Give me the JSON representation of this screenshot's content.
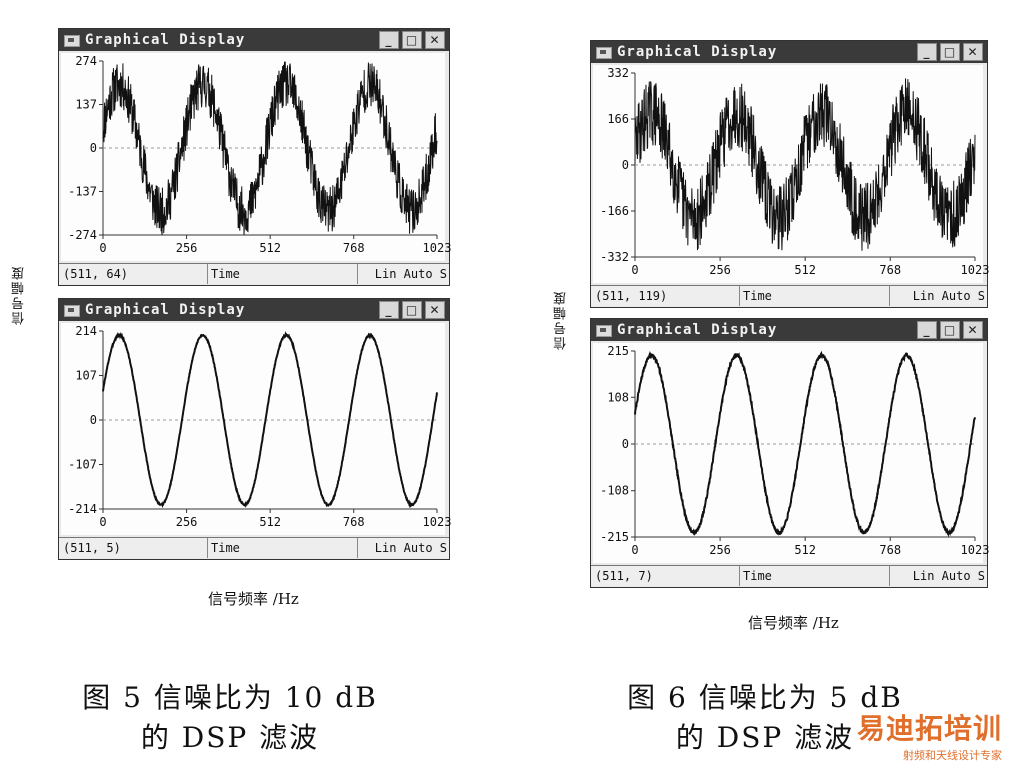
{
  "windows": [
    {
      "id": "w1",
      "title": "Graphical Display",
      "status_xy": "(511, 64)",
      "status_mode": "Time",
      "status_right": "Lin Auto S",
      "chart_data": {
        "type": "line",
        "title": "",
        "yticks": [
          "274",
          "137",
          "0",
          "-137",
          "-274"
        ],
        "xticks": [
          "0",
          "256",
          "512",
          "768",
          "1023"
        ],
        "ylim": [
          -274,
          274
        ],
        "xlim": [
          0,
          1023
        ],
        "cycles": 4,
        "amplitude": 200,
        "noise": 75,
        "y_zero_line": true,
        "seed": 11
      }
    },
    {
      "id": "w2",
      "title": "Graphical Display",
      "status_xy": "(511, 5)",
      "status_mode": "Time",
      "status_right": "Lin Auto S",
      "chart_data": {
        "type": "line",
        "title": "",
        "yticks": [
          "214",
          "107",
          "0",
          "-107",
          "-214"
        ],
        "xticks": [
          "0",
          "256",
          "512",
          "768",
          "1023"
        ],
        "ylim": [
          -214,
          214
        ],
        "xlim": [
          0,
          1023
        ],
        "cycles": 4,
        "amplitude": 204,
        "noise": 2,
        "y_zero_line": true,
        "seed": 3
      }
    },
    {
      "id": "w3",
      "title": "Graphical Display",
      "status_xy": "(511, 119)",
      "status_mode": "Time",
      "status_right": "Lin Auto S",
      "chart_data": {
        "type": "line",
        "title": "",
        "yticks": [
          "332",
          "166",
          "0",
          "-166",
          "-332"
        ],
        "xticks": [
          "0",
          "256",
          "512",
          "768",
          "1023"
        ],
        "ylim": [
          -332,
          332
        ],
        "xlim": [
          0,
          1023
        ],
        "cycles": 4,
        "amplitude": 190,
        "noise": 125,
        "y_zero_line": true,
        "seed": 29
      }
    },
    {
      "id": "w4",
      "title": "Graphical Display",
      "status_xy": "(511, 7)",
      "status_mode": "Time",
      "status_right": "Lin Auto S",
      "chart_data": {
        "type": "line",
        "title": "",
        "yticks": [
          "215",
          "108",
          "0",
          "-108",
          "-215"
        ],
        "xticks": [
          "0",
          "256",
          "512",
          "768",
          "1023"
        ],
        "ylim": [
          -215,
          215
        ],
        "xlim": [
          0,
          1023
        ],
        "cycles": 4,
        "amplitude": 205,
        "noise": 4,
        "y_zero_line": true,
        "seed": 7
      }
    }
  ],
  "axis": {
    "y_label": "信号幅度",
    "x_label": "信号频率 /Hz"
  },
  "captions": {
    "fig5_line1": "图 5   信噪比为 10 dB",
    "fig5_line2": "的 DSP 滤波",
    "fig6_line1": "图 6   信噪比为 5 dB",
    "fig6_line2": "的 DSP 滤波"
  },
  "watermark": {
    "brand": "易迪拓培训",
    "sub": "射频和天线设计专家"
  },
  "icons": [
    "minimize-icon",
    "maximize-icon",
    "close-icon",
    "window-app-icon"
  ]
}
